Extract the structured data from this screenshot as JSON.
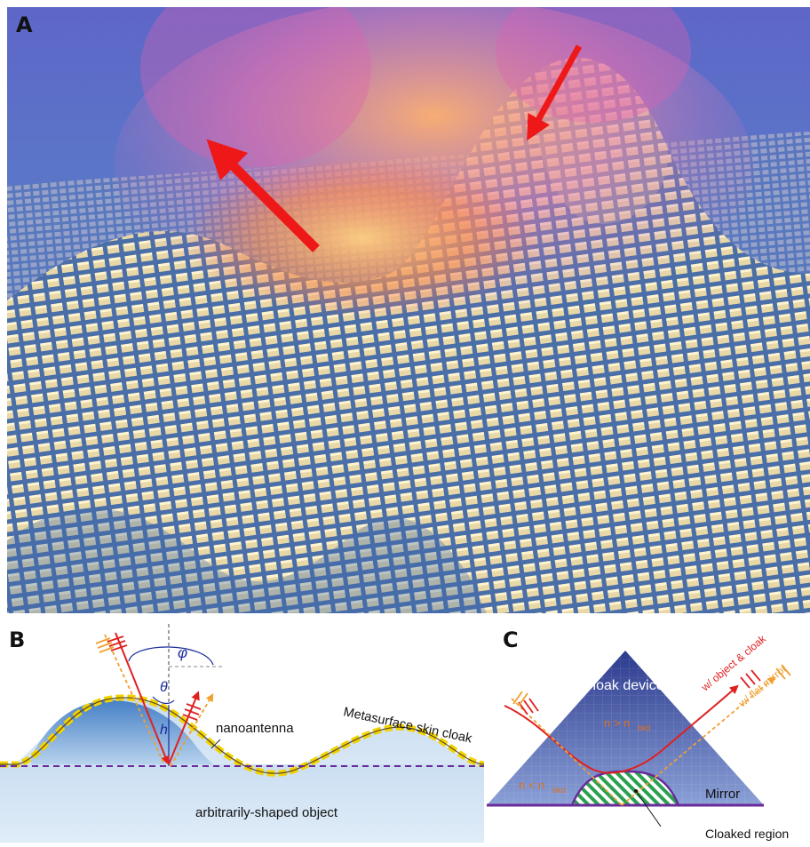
{
  "panels": {
    "a": {
      "letter": "A"
    },
    "b": {
      "letter": "B",
      "phi": "φ",
      "theta": "θ",
      "h": "h",
      "nanoantenna": "nanoantenna",
      "skin_cloak": "Metasurface skin cloak",
      "object": "arbitrarily-shaped object"
    },
    "c": {
      "letter": "C",
      "cloak_device": "Cloak device",
      "n_greater": "n > n",
      "n_less": "n < n",
      "n_sub": "bkd",
      "mirror": "Mirror",
      "cloaked_region": "Cloaked region",
      "object_cloak": "w/ object & cloak",
      "flat_mirror": "w/ flat mirror"
    }
  },
  "colors": {
    "red_ray": "#e02020",
    "orange_ray": "#f0a030",
    "blue_text": "#1a2a9a",
    "orange_text": "#e07020",
    "gold": "#f2d200",
    "purple": "#6a2a9a"
  }
}
